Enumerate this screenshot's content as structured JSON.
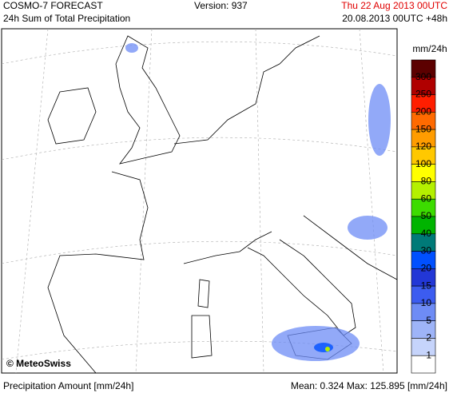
{
  "header": {
    "product": "COSMO-7 FORECAST",
    "field": "24h Sum of Total Precipitation",
    "version": "Version: 937",
    "valid": "Thu 22 Aug 2013 00UTC",
    "run": "20.08.2013 00UTC +48h"
  },
  "legend": {
    "title": "mm/24h",
    "labels": [
      "300",
      "250",
      "200",
      "150",
      "120",
      "100",
      "80",
      "60",
      "50",
      "40",
      "30",
      "20",
      "15",
      "10",
      "5",
      "2",
      "1"
    ],
    "colors": [
      "#5c0000",
      "#b00000",
      "#ff1e00",
      "#ff6a00",
      "#ff9c00",
      "#ffc800",
      "#ffff00",
      "#b4f000",
      "#3cdc00",
      "#00b400",
      "#007a78",
      "#0050ff",
      "#2237d6",
      "#3c5cf0",
      "#6e8cf5",
      "#9eb4f8",
      "#c6d4fb",
      "#ffffff"
    ]
  },
  "map": {
    "credit": "© MeteoSwiss"
  },
  "footer": {
    "quantity": "Precipitation Amount [mm/24h]",
    "stats": "Mean:  0.324 Max: 125.895 [mm/24h]"
  }
}
